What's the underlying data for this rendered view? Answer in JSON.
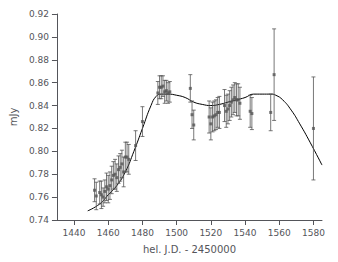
{
  "chart_data": {
    "type": "scatter",
    "xlabel": "hel. J.D. - 2450000",
    "ylabel": "mJy",
    "xlim": [
      1430,
      1585
    ],
    "ylim": [
      0.74,
      0.92
    ],
    "xticks": [
      1440,
      1460,
      1480,
      1500,
      1520,
      1540,
      1560,
      1580
    ],
    "yticks": [
      0.74,
      0.76,
      0.78,
      {
        "value": 0.8,
        "label": "0.80"
      },
      0.82,
      0.84,
      0.86,
      0.88,
      {
        "value": 0.9,
        "label": "0.90"
      },
      0.92
    ],
    "grid": false,
    "series": [
      {
        "type": "line",
        "color": "#000000",
        "marker": "none",
        "x": [
          1448,
          1455,
          1460,
          1465,
          1470,
          1475,
          1480,
          1485,
          1488,
          1491,
          1495,
          1500,
          1505,
          1510,
          1515,
          1520,
          1525,
          1530,
          1535,
          1540,
          1545,
          1550,
          1555,
          1558,
          1562,
          1567,
          1572,
          1578,
          1585
        ],
        "values": [
          0.748,
          0.754,
          0.762,
          0.77,
          0.782,
          0.8,
          0.82,
          0.84,
          0.848,
          0.85,
          0.85,
          0.849,
          0.847,
          0.843,
          0.841,
          0.84,
          0.841,
          0.843,
          0.845,
          0.847,
          0.85,
          0.85,
          0.85,
          0.849,
          0.845,
          0.836,
          0.824,
          0.808,
          0.788
        ]
      },
      {
        "type": "scatter",
        "color": "#555555",
        "marker": "square",
        "x": [
          1452,
          1453,
          1455,
          1456,
          1457,
          1458,
          1459,
          1460,
          1461,
          1462,
          1463,
          1464,
          1465,
          1466,
          1467,
          1468,
          1469,
          1470,
          1471,
          1472,
          1476,
          1480,
          1489,
          1490,
          1491,
          1492,
          1493,
          1494,
          1495,
          1496,
          1508,
          1509,
          1510,
          1519,
          1520,
          1521,
          1522,
          1523,
          1524,
          1525,
          1528,
          1529,
          1530,
          1531,
          1532,
          1533,
          1534,
          1535,
          1536,
          1537,
          1543,
          1544,
          1555,
          1557,
          1580
        ],
        "values": [
          0.766,
          0.761,
          0.764,
          0.762,
          0.76,
          0.765,
          0.769,
          0.767,
          0.77,
          0.775,
          0.779,
          0.78,
          0.777,
          0.784,
          0.786,
          0.789,
          0.782,
          0.795,
          0.795,
          0.793,
          0.805,
          0.826,
          0.851,
          0.856,
          0.856,
          0.857,
          0.852,
          0.853,
          0.851,
          0.852,
          0.855,
          0.832,
          0.823,
          0.83,
          0.824,
          0.83,
          0.831,
          0.832,
          0.834,
          0.834,
          0.84,
          0.835,
          0.837,
          0.84,
          0.843,
          0.845,
          0.847,
          0.845,
          0.845,
          0.842,
          0.835,
          0.833,
          0.834,
          0.867,
          0.82
        ],
        "errors": [
          0.01,
          0.012,
          0.01,
          0.012,
          0.008,
          0.01,
          0.012,
          0.012,
          0.012,
          0.012,
          0.012,
          0.013,
          0.012,
          0.012,
          0.012,
          0.012,
          0.013,
          0.013,
          0.013,
          0.013,
          0.013,
          0.013,
          0.01,
          0.01,
          0.01,
          0.009,
          0.01,
          0.009,
          0.009,
          0.009,
          0.012,
          0.012,
          0.013,
          0.014,
          0.014,
          0.013,
          0.013,
          0.013,
          0.013,
          0.014,
          0.014,
          0.014,
          0.013,
          0.013,
          0.013,
          0.013,
          0.013,
          0.014,
          0.014,
          0.014,
          0.014,
          0.014,
          0.016,
          0.04,
          0.045
        ]
      }
    ]
  }
}
